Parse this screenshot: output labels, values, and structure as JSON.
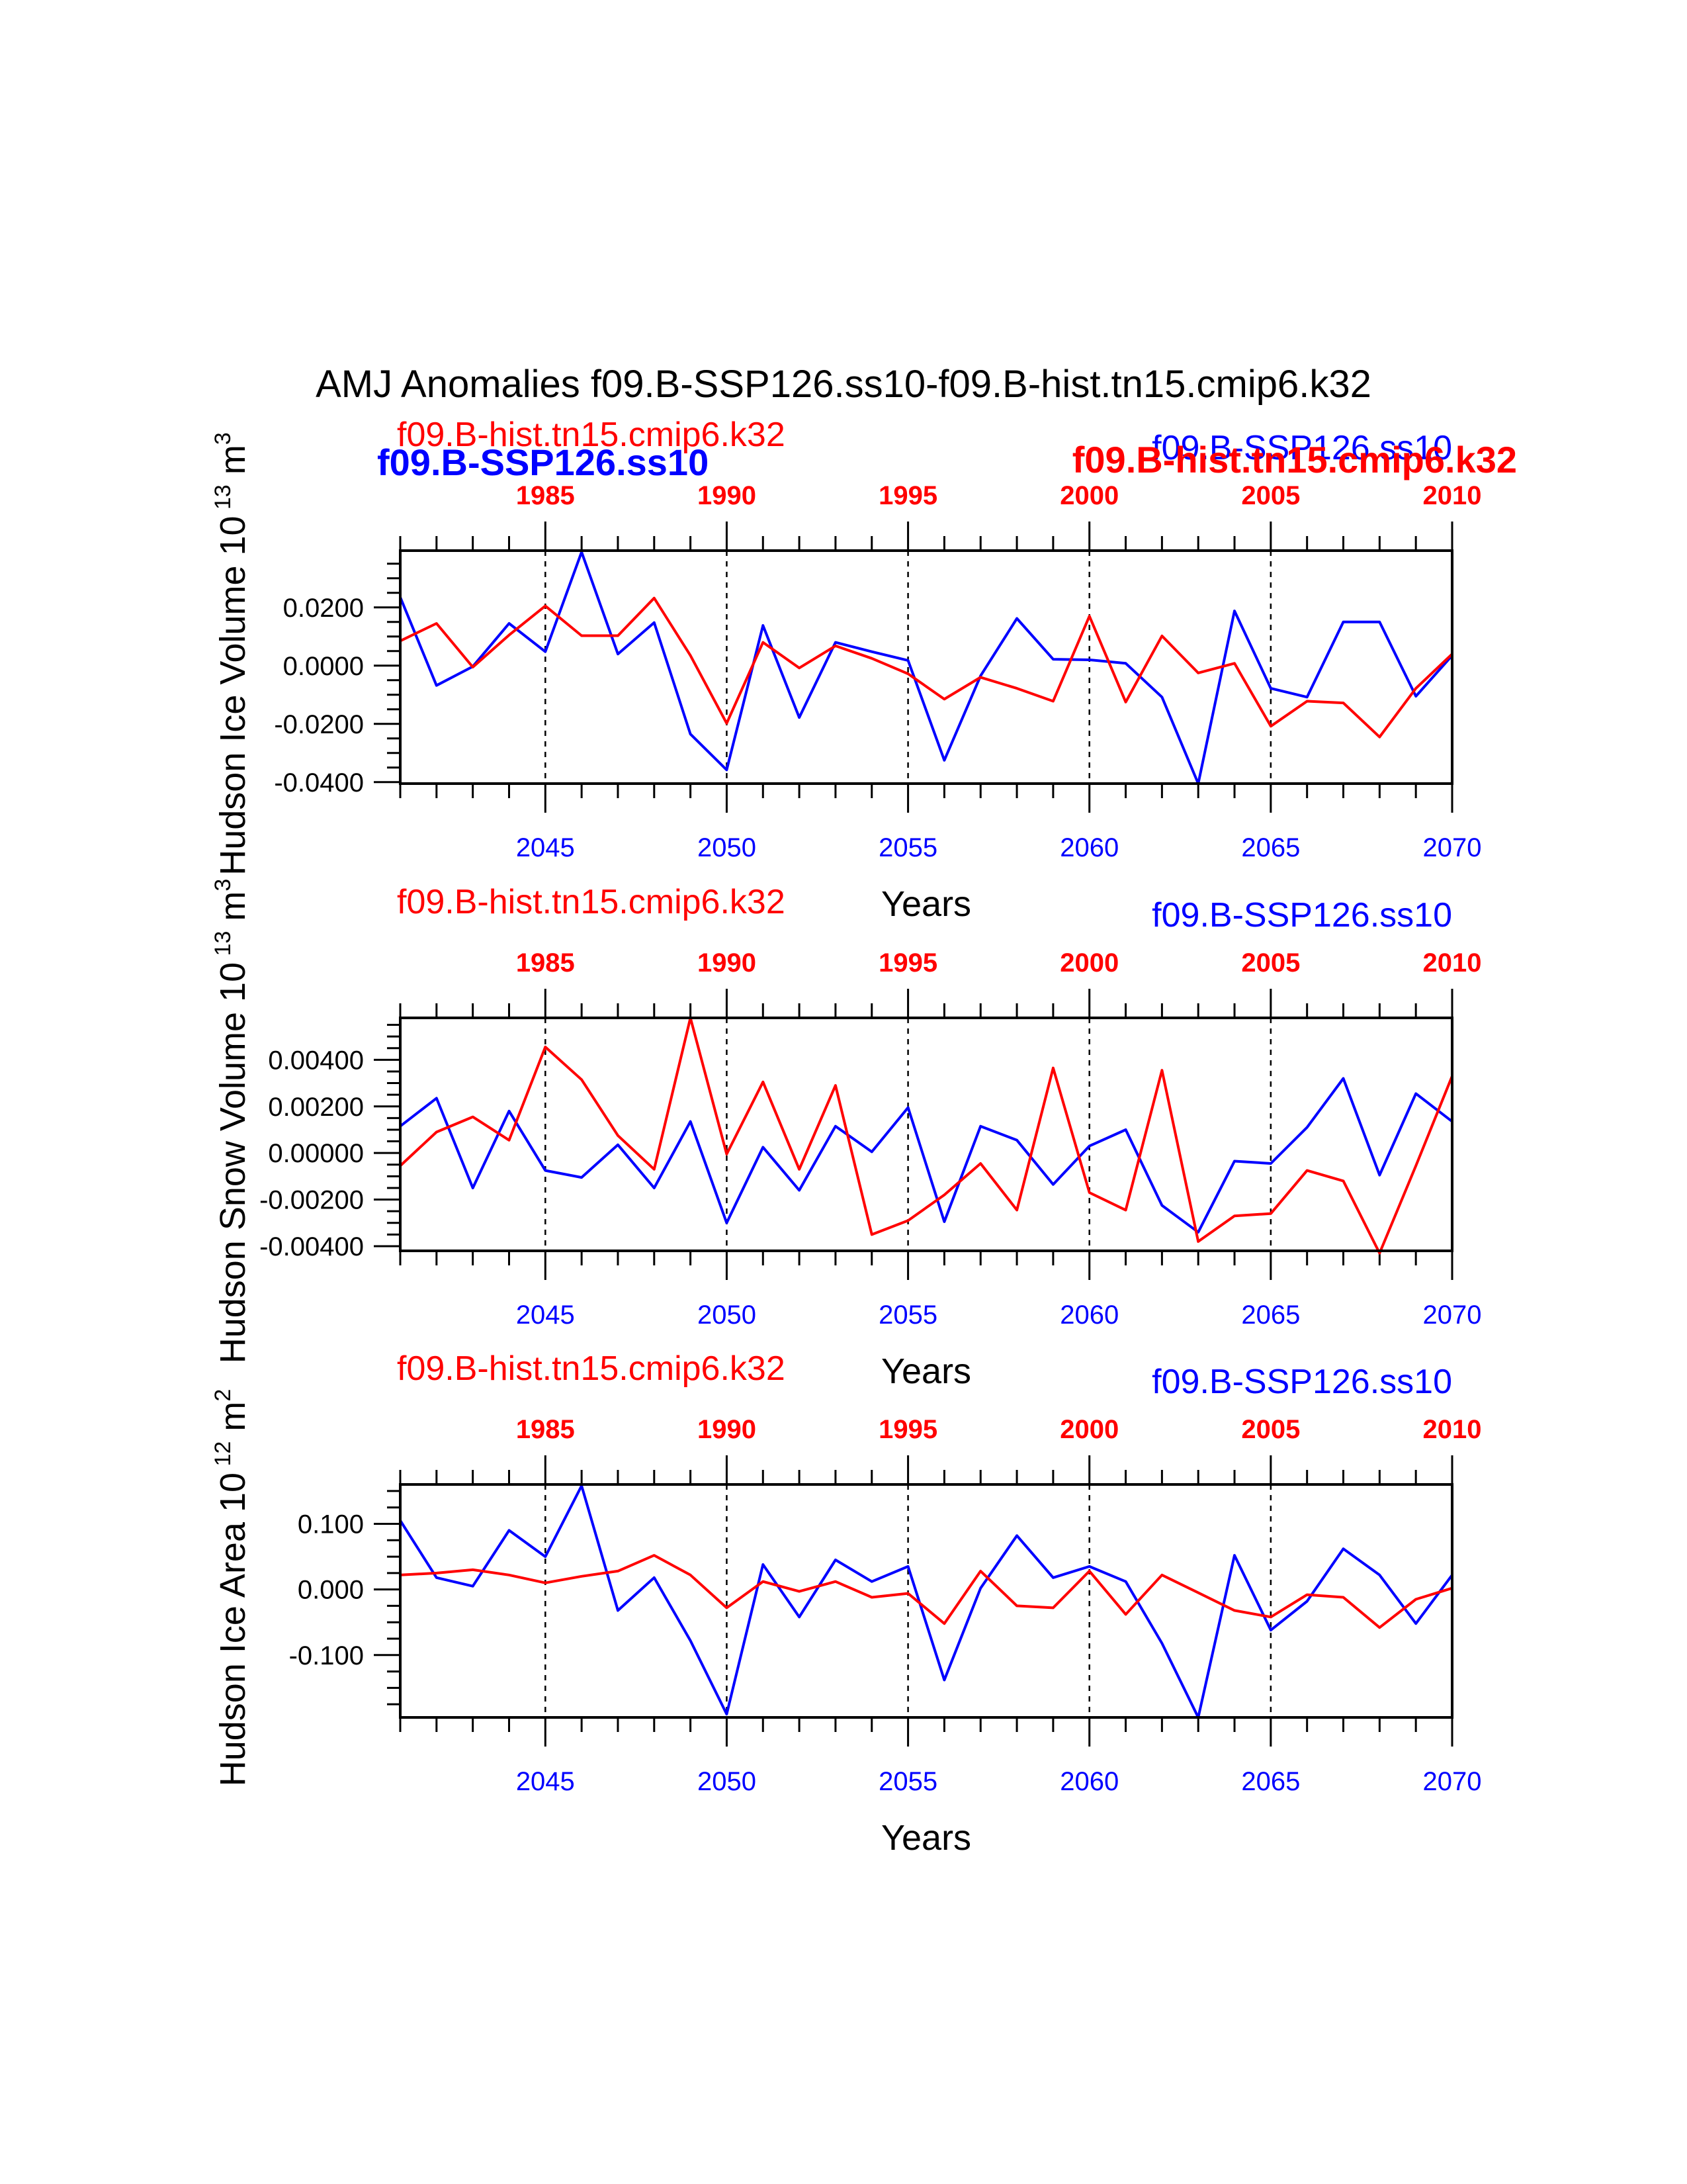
{
  "figure": {
    "title": "AMJ Anomalies f09.B-SSP126.ss10-f09.B-hist.tn15.cmip6.k32",
    "overlay_labels": {
      "ssp": "f09.B-SSP126.ss10",
      "hist": "f09.B-hist.tn15.cmip6.k32"
    }
  },
  "colors": {
    "ssp": "#0000ff",
    "hist": "#ff0000",
    "axis": "#000000",
    "background": "#ffffff"
  },
  "chart_data": [
    {
      "type": "line",
      "title": "",
      "xlabel": "Years",
      "ylabel": "Hudson Ice Volume 10",
      "ylabel_exp": "13",
      "ylabel_unit": " m",
      "ylabel_unit_exp": "3",
      "xlim": [
        2041,
        2070
      ],
      "ylim": [
        -0.0405,
        0.0395
      ],
      "yticks": [
        -0.04,
        -0.02,
        0.0,
        0.02
      ],
      "ytick_labels": [
        "-0.0400",
        "-0.0200",
        "0.0000",
        "0.0200"
      ],
      "yminor_step": 0.005,
      "bottom_ticks": [
        2045,
        2050,
        2055,
        2060,
        2065,
        2070
      ],
      "top_ticks": [
        1985,
        1990,
        1995,
        2000,
        2005,
        2010
      ],
      "top_offset": 60,
      "vlines": [
        2045,
        2050,
        2055,
        2060,
        2065
      ],
      "grid": false,
      "legend": {
        "hist_label": "f09.B-hist.tn15.cmip6.k32",
        "ssp_label": "f09.B-SSP126.ss10"
      },
      "x": [
        2041,
        2042,
        2043,
        2044,
        2045,
        2046,
        2047,
        2048,
        2049,
        2050,
        2051,
        2052,
        2053,
        2054,
        2055,
        2056,
        2057,
        2058,
        2059,
        2060,
        2061,
        2062,
        2063,
        2064,
        2065,
        2066,
        2067,
        2068,
        2069,
        2070
      ],
      "series": [
        {
          "name": "f09.B-SSP126.ss10",
          "color_key": "ssp",
          "values": [
            0.0235,
            -0.0068,
            -0.0003,
            0.0145,
            0.0048,
            0.039,
            0.004,
            0.0148,
            -0.0235,
            -0.0358,
            0.0138,
            -0.0178,
            0.008,
            0.0048,
            0.0018,
            -0.0325,
            -0.0035,
            0.0162,
            0.0022,
            0.002,
            0.0008,
            -0.0108,
            -0.0405,
            0.0188,
            -0.0078,
            -0.0108,
            0.015,
            0.015,
            -0.0105,
            0.0035
          ]
        },
        {
          "name": "f09.B-hist.tn15.cmip6.k32",
          "color_key": "hist",
          "values": [
            0.0085,
            0.0145,
            -0.0005,
            0.0105,
            0.0205,
            0.0103,
            0.0103,
            0.0232,
            0.0035,
            -0.0198,
            0.008,
            -0.0008,
            0.0068,
            0.0025,
            -0.0028,
            -0.0115,
            -0.004,
            -0.0078,
            -0.0122,
            0.017,
            -0.0125,
            0.0102,
            -0.0025,
            0.0008,
            -0.0208,
            -0.0122,
            -0.0128,
            -0.0245,
            -0.0078,
            0.004
          ]
        }
      ]
    },
    {
      "type": "line",
      "title": "",
      "xlabel": "Years",
      "ylabel": "Hudson Snow Volume 10",
      "ylabel_exp": "13",
      "ylabel_unit": " m",
      "ylabel_unit_exp": "3",
      "xlim": [
        2041,
        2070
      ],
      "ylim": [
        -0.0042,
        0.0058
      ],
      "yticks": [
        -0.004,
        -0.002,
        0.0,
        0.002,
        0.004
      ],
      "ytick_labels": [
        "-0.00400",
        "-0.00200",
        "0.00000",
        "0.00200",
        "0.00400"
      ],
      "yminor_step": 0.0005,
      "bottom_ticks": [
        2045,
        2050,
        2055,
        2060,
        2065,
        2070
      ],
      "top_ticks": [
        1985,
        1990,
        1995,
        2000,
        2005,
        2010
      ],
      "top_offset": 60,
      "vlines": [
        2045,
        2050,
        2055,
        2060,
        2065
      ],
      "grid": false,
      "legend": {
        "hist_label": "f09.B-hist.tn15.cmip6.k32",
        "ssp_label": "f09.B-SSP126.ss10"
      },
      "x": [
        2041,
        2042,
        2043,
        2044,
        2045,
        2046,
        2047,
        2048,
        2049,
        2050,
        2051,
        2052,
        2053,
        2054,
        2055,
        2056,
        2057,
        2058,
        2059,
        2060,
        2061,
        2062,
        2063,
        2064,
        2065,
        2066,
        2067,
        2068,
        2069,
        2070
      ],
      "series": [
        {
          "name": "f09.B-SSP126.ss10",
          "color_key": "ssp",
          "values": [
            0.00115,
            0.00235,
            -0.0015,
            0.0018,
            -0.00075,
            -0.00105,
            0.00035,
            -0.0015,
            0.00135,
            -0.003,
            0.00025,
            -0.0016,
            0.00115,
            5e-05,
            0.00195,
            -0.00295,
            0.00115,
            0.00055,
            -0.00135,
            0.0003,
            0.001,
            -0.00225,
            -0.0034,
            -0.00035,
            -0.00045,
            0.0011,
            0.0032,
            -0.00095,
            0.00255,
            0.00135
          ]
        },
        {
          "name": "f09.B-hist.tn15.cmip6.k32",
          "color_key": "hist",
          "values": [
            -0.00055,
            0.0009,
            0.00155,
            0.00055,
            0.00455,
            0.00315,
            0.00075,
            -0.0007,
            0.0058,
            -5e-05,
            0.00305,
            -0.0007,
            0.0029,
            -0.0035,
            -0.0029,
            -0.0018,
            -0.00045,
            -0.00245,
            0.00365,
            -0.0017,
            -0.00245,
            0.00355,
            -0.0038,
            -0.0027,
            -0.0026,
            -0.00075,
            -0.0012,
            -0.0043,
            -0.00055,
            0.0033
          ]
        }
      ]
    },
    {
      "type": "line",
      "title": "",
      "xlabel": "Years",
      "ylabel": "Hudson Ice Area 10",
      "ylabel_exp": "12",
      "ylabel_unit": " m",
      "ylabel_unit_exp": "2",
      "xlim": [
        2041,
        2070
      ],
      "ylim": [
        -0.195,
        0.16
      ],
      "yticks": [
        -0.1,
        0.0,
        0.1
      ],
      "ytick_labels": [
        "-0.100",
        "0.000",
        "0.100"
      ],
      "yminor_step": 0.025,
      "bottom_ticks": [
        2045,
        2050,
        2055,
        2060,
        2065,
        2070
      ],
      "top_ticks": [
        1985,
        1990,
        1995,
        2000,
        2005,
        2010
      ],
      "top_offset": 60,
      "vlines": [
        2045,
        2050,
        2055,
        2060,
        2065
      ],
      "grid": false,
      "legend": {
        "hist_label": "f09.B-hist.tn15.cmip6.k32",
        "ssp_label": "f09.B-SSP126.ss10"
      },
      "x": [
        2041,
        2042,
        2043,
        2044,
        2045,
        2046,
        2047,
        2048,
        2049,
        2050,
        2051,
        2052,
        2053,
        2054,
        2055,
        2056,
        2057,
        2058,
        2059,
        2060,
        2061,
        2062,
        2063,
        2064,
        2065,
        2066,
        2067,
        2068,
        2069,
        2070
      ],
      "series": [
        {
          "name": "f09.B-SSP126.ss10",
          "color_key": "ssp",
          "values": [
            0.105,
            0.018,
            0.005,
            0.09,
            0.05,
            0.158,
            -0.032,
            0.018,
            -0.078,
            -0.19,
            0.038,
            -0.042,
            0.045,
            0.012,
            0.035,
            -0.138,
            0.002,
            0.082,
            0.018,
            0.035,
            0.012,
            -0.082,
            -0.195,
            0.052,
            -0.062,
            -0.018,
            0.062,
            0.022,
            -0.052,
            0.022
          ]
        },
        {
          "name": "f09.B-hist.tn15.cmip6.k32",
          "color_key": "hist",
          "values": [
            0.022,
            0.025,
            0.03,
            0.022,
            0.01,
            0.02,
            0.028,
            0.052,
            0.022,
            -0.028,
            0.012,
            -0.003,
            0.012,
            -0.012,
            -0.006,
            -0.052,
            0.028,
            -0.025,
            -0.028,
            0.028,
            -0.038,
            0.022,
            -0.005,
            -0.032,
            -0.042,
            -0.008,
            -0.012,
            -0.058,
            -0.015,
            0.002
          ]
        }
      ]
    }
  ]
}
